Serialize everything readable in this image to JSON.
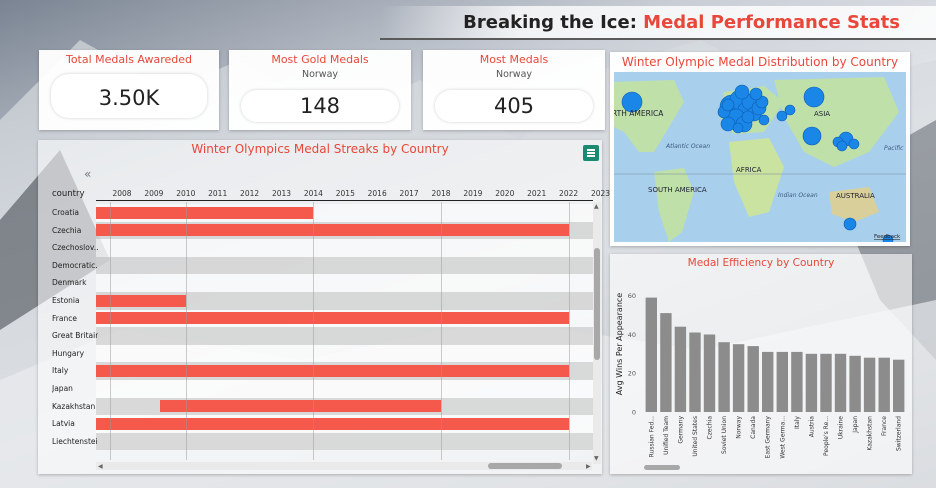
{
  "header": {
    "title_main": "Breaking the Ice",
    "title_sep": ": ",
    "title_accent": "Medal Performance Stats"
  },
  "kpis": [
    {
      "title": "Total Medals Awareded",
      "subtitle": "",
      "value": "3.50K"
    },
    {
      "title": "Most Gold Medals",
      "subtitle": "Norway",
      "value": "148"
    },
    {
      "title": "Most Medals",
      "subtitle": "Norway",
      "value": "405"
    }
  ],
  "streaks": {
    "title": "Winter Olympics Medal Streaks by Country",
    "column_header": "country",
    "collapse_glyph": "«",
    "years": [
      "2008",
      "2009",
      "2010",
      "2011",
      "2012",
      "2013",
      "2014",
      "2015",
      "2016",
      "2017",
      "2018",
      "2019",
      "2020",
      "2021",
      "2022",
      "2023"
    ],
    "rows": [
      {
        "country": "Croatia",
        "start": 2008,
        "end": 2014
      },
      {
        "country": "Czechia",
        "start": 2008,
        "end": 2022
      },
      {
        "country": "Czechoslov...",
        "start": null,
        "end": null
      },
      {
        "country": "Democratic...",
        "start": null,
        "end": null
      },
      {
        "country": "Denmark",
        "start": null,
        "end": null
      },
      {
        "country": "Estonia",
        "start": 2008,
        "end": 2010
      },
      {
        "country": "France",
        "start": 2008,
        "end": 2022
      },
      {
        "country": "Great Britain",
        "start": null,
        "end": null
      },
      {
        "country": "Hungary",
        "start": null,
        "end": null
      },
      {
        "country": "Italy",
        "start": 2008,
        "end": 2022
      },
      {
        "country": "Japan",
        "start": null,
        "end": null
      },
      {
        "country": "Kazakhstan",
        "start": 2010,
        "end": 2018
      },
      {
        "country": "Latvia",
        "start": 2008,
        "end": 2022
      },
      {
        "country": "Liechtenstein",
        "start": null,
        "end": null
      }
    ]
  },
  "map": {
    "title": "Winter Olympic Medal Distribution by Country",
    "labels": {
      "north_america": "RTH AMERICA",
      "atlantic": "Atlantic Ocean",
      "south_america": "SOUTH AMERICA",
      "africa": "AFRICA",
      "asia": "ASIA",
      "indian": "Indian Ocean",
      "australia": "AUSTRALIA",
      "pacific": "Pacific",
      "feedback": "Feedback"
    },
    "colors": {
      "bubble": "#1a86e8",
      "water": "#a8d0ec",
      "land": "#b8dca0"
    }
  },
  "efficiency": {
    "title": "Medal Efficiency by Country",
    "ylabel": "Avg Wins Per Appearance",
    "yticks": [
      0,
      20,
      40,
      60
    ],
    "bar_color": "#8c8c8c",
    "chart_data": {
      "type": "bar",
      "categories": [
        "Russian Fed...",
        "Unified Team",
        "Germany",
        "United States",
        "Czechia",
        "Soviet Union",
        "Norway",
        "Canada",
        "East Germany",
        "West Germa...",
        "Italy",
        "Austria",
        "People's Re...",
        "Ukraine",
        "Japan",
        "Kazakhstan",
        "France",
        "Switzerland"
      ],
      "values": [
        59,
        51,
        44,
        41,
        40,
        36,
        35,
        34,
        31,
        31,
        31,
        30,
        30,
        30,
        29,
        28,
        28,
        27
      ],
      "ylim": [
        0,
        65
      ]
    }
  }
}
